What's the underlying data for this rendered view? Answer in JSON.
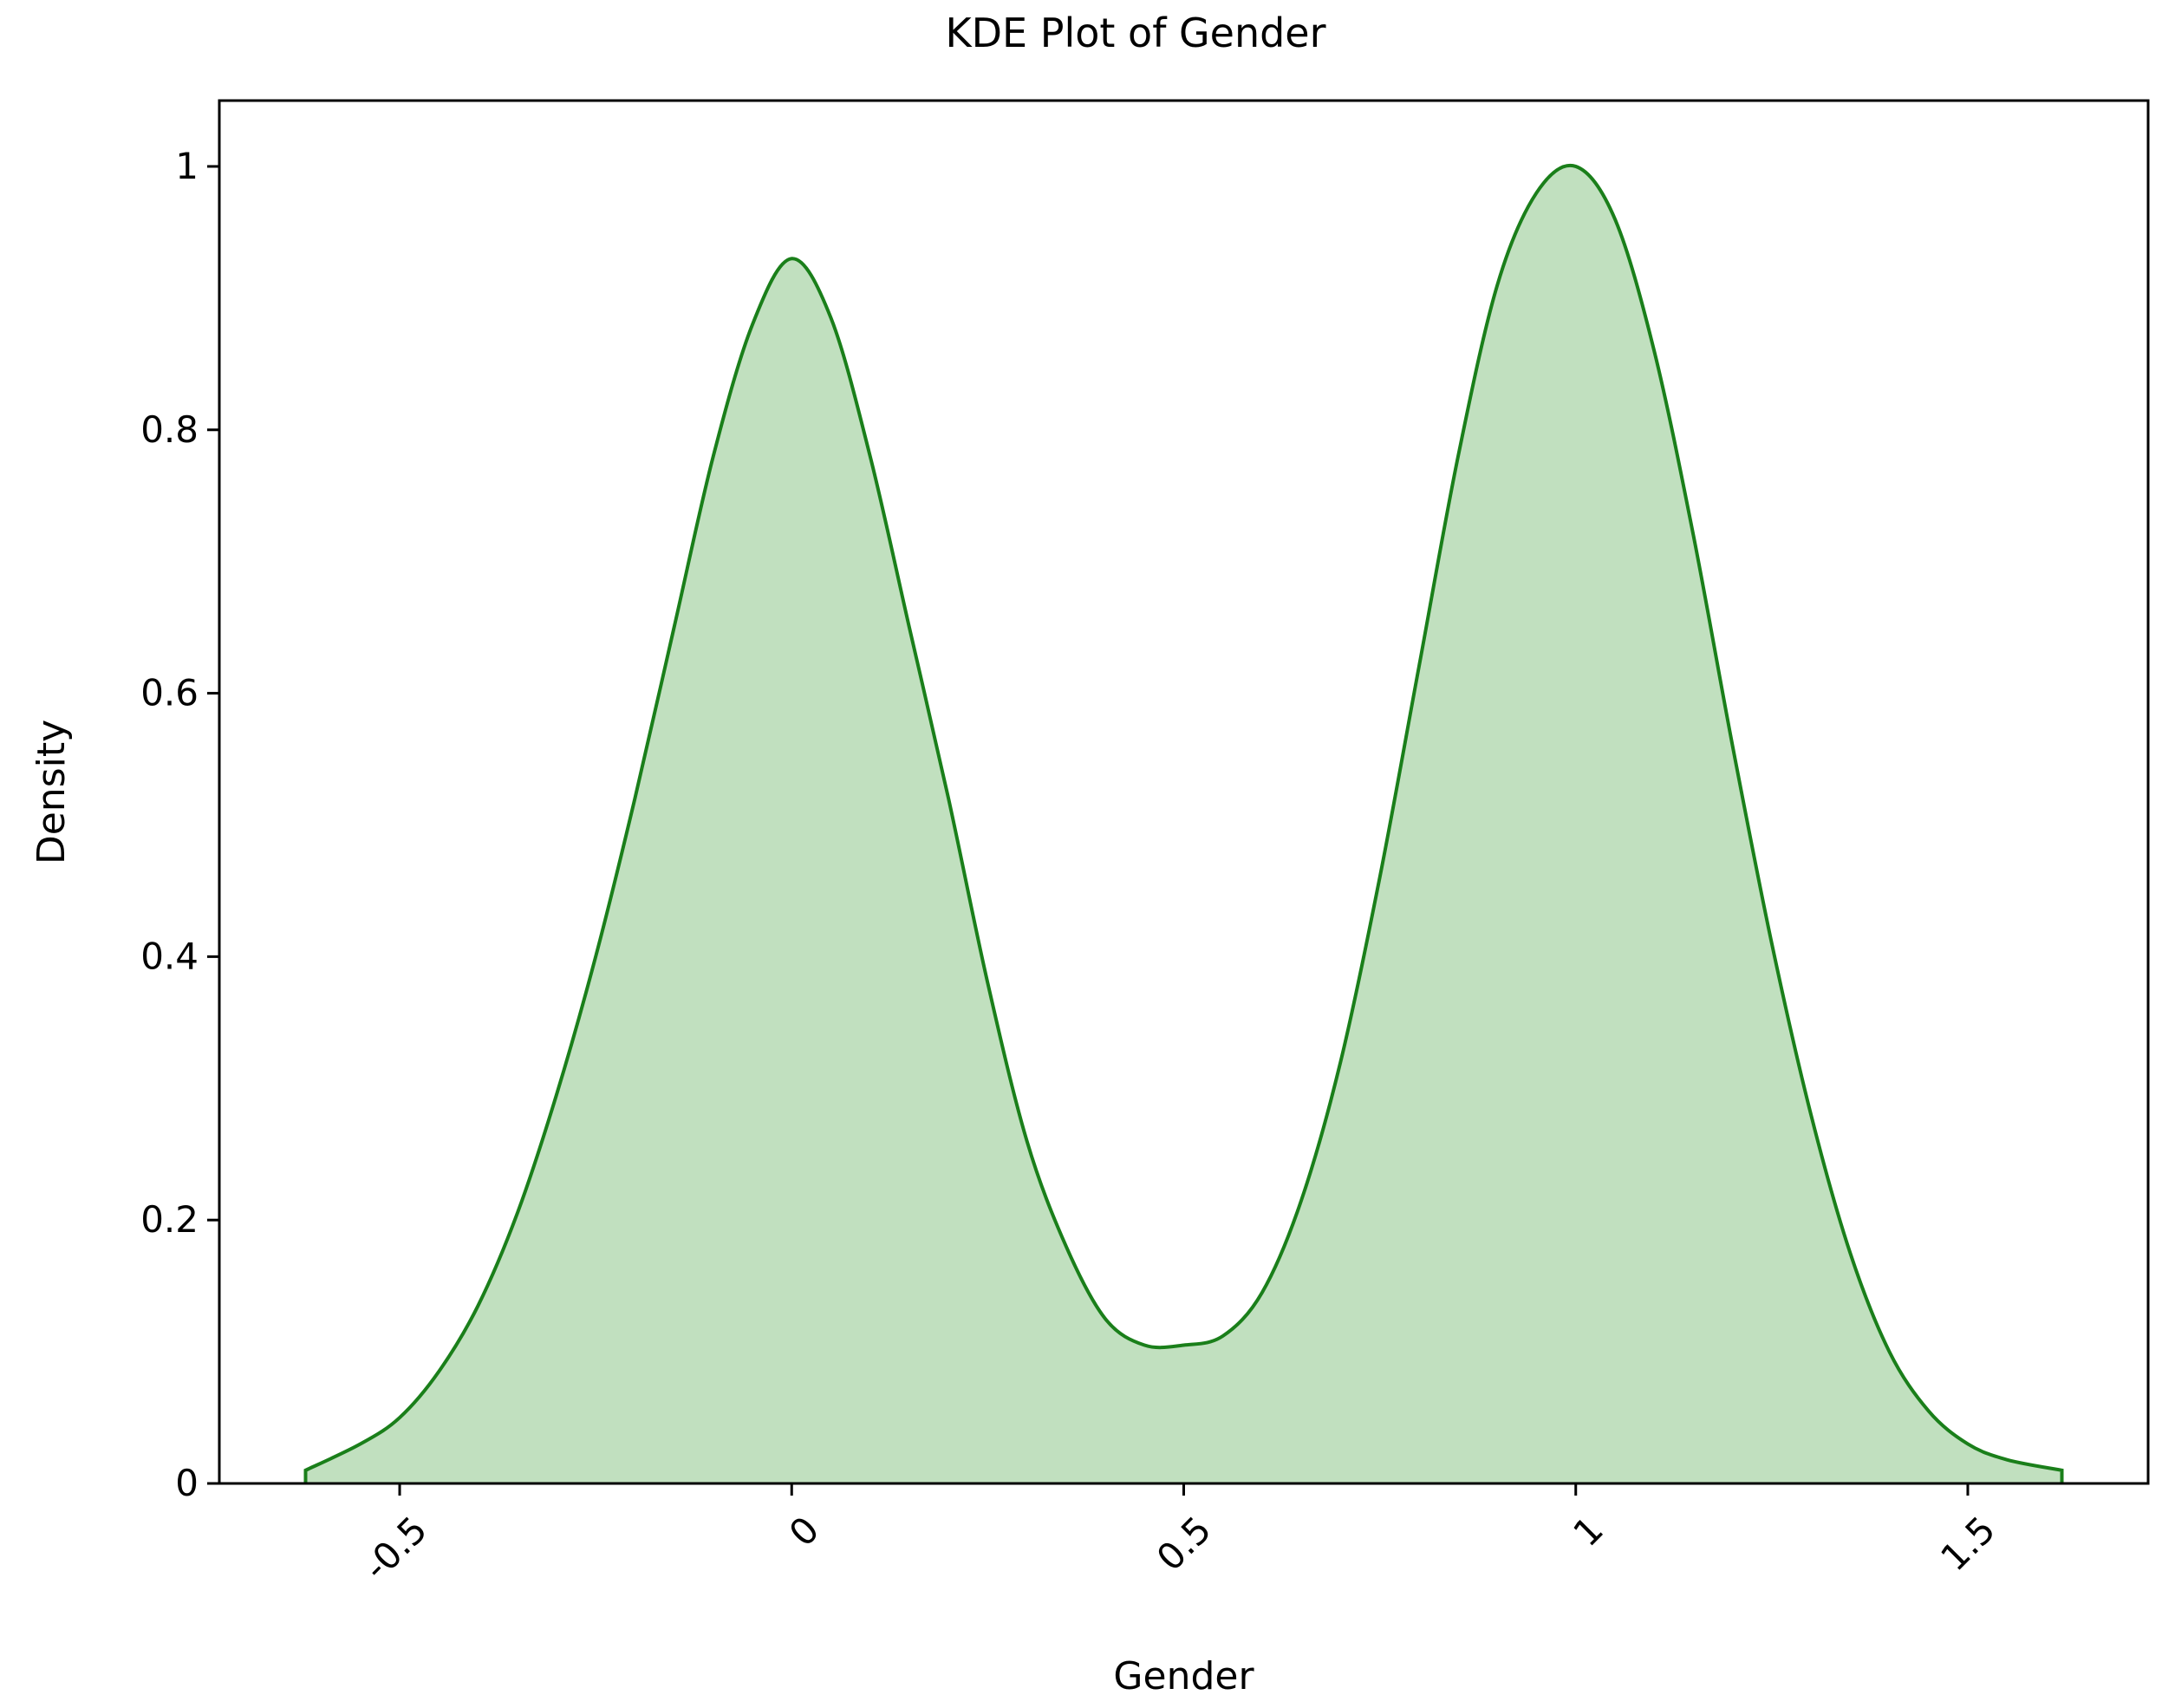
{
  "chart_data": {
    "type": "area",
    "title": "KDE Plot of Gender",
    "xlabel": "Gender",
    "ylabel": "Density",
    "xlim": [
      -0.73,
      1.73
    ],
    "ylim": [
      0,
      1.05
    ],
    "xticks": [
      -0.5,
      0,
      0.5,
      1,
      1.5
    ],
    "xtick_labels": [
      "-0.5",
      "0",
      "0.5",
      "1",
      "1.5"
    ],
    "xtick_rotation": 45,
    "yticks": [
      0,
      0.2,
      0.4,
      0.6,
      0.8,
      1
    ],
    "ytick_labels": [
      "0",
      "0.2",
      "0.4",
      "0.6",
      "0.8",
      "1"
    ],
    "grid": false,
    "legend": false,
    "series": [
      {
        "x": [
          -0.62,
          -0.55,
          -0.5,
          -0.45,
          -0.4,
          -0.35,
          -0.3,
          -0.25,
          -0.2,
          -0.15,
          -0.1,
          -0.05,
          0.0,
          0.05,
          0.1,
          0.15,
          0.2,
          0.25,
          0.3,
          0.35,
          0.4,
          0.45,
          0.5,
          0.55,
          0.6,
          0.65,
          0.7,
          0.75,
          0.8,
          0.85,
          0.9,
          0.95,
          1.0,
          1.05,
          1.1,
          1.15,
          1.2,
          1.25,
          1.3,
          1.35,
          1.4,
          1.45,
          1.5,
          1.55,
          1.62
        ],
        "y": [
          0.01,
          0.03,
          0.05,
          0.085,
          0.135,
          0.205,
          0.295,
          0.4,
          0.52,
          0.65,
          0.78,
          0.88,
          0.93,
          0.885,
          0.78,
          0.65,
          0.52,
          0.38,
          0.26,
          0.18,
          0.125,
          0.105,
          0.105,
          0.112,
          0.145,
          0.215,
          0.32,
          0.46,
          0.62,
          0.78,
          0.91,
          0.98,
          1.0,
          0.96,
          0.86,
          0.72,
          0.56,
          0.41,
          0.28,
          0.175,
          0.1,
          0.055,
          0.03,
          0.018,
          0.01
        ]
      }
    ],
    "colors": {
      "line": "#1a7f1a",
      "fill": "#c1e0bf",
      "axis": "#000000"
    }
  }
}
